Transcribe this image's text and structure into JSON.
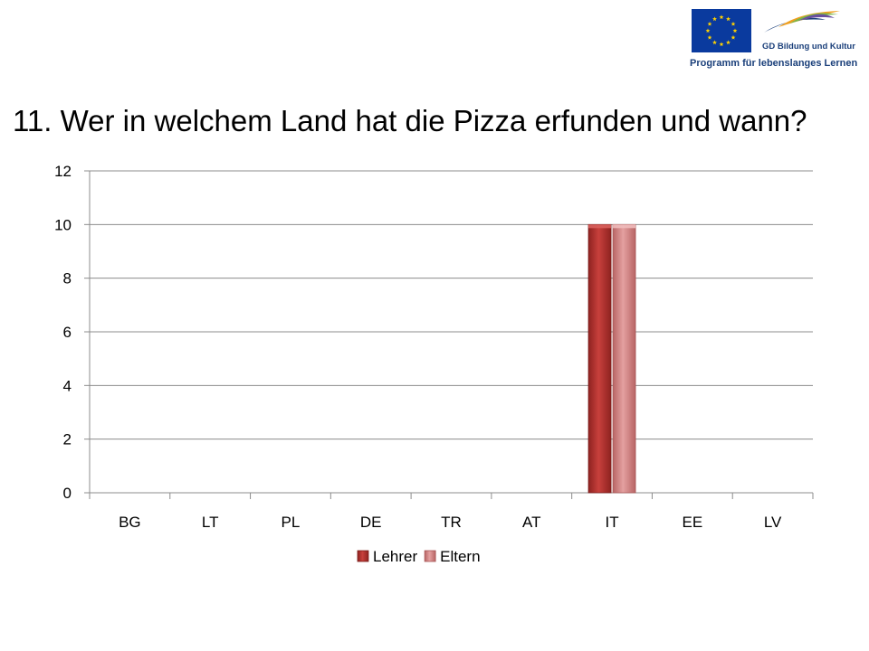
{
  "slide": {
    "title": "11. Wer in welchem Land hat die Pizza erfunden und wann?",
    "logo": {
      "gd_text": "GD Bildung und Kultur",
      "program_text": "Programm für lebenslanges Lernen",
      "eu_flag_color": "#0a3a9e",
      "star_color": "#ffd200"
    }
  },
  "chart_data": {
    "type": "bar",
    "categories": [
      "BG",
      "LT",
      "PL",
      "DE",
      "TR",
      "AT",
      "IT",
      "EE",
      "LV"
    ],
    "series": [
      {
        "name": "Lehrer",
        "values": [
          0,
          0,
          0,
          0,
          0,
          0,
          10,
          0,
          0
        ],
        "color": "#b5312f"
      },
      {
        "name": "Eltern",
        "values": [
          0,
          0,
          0,
          0,
          0,
          0,
          10,
          0,
          0
        ],
        "color": "#d98585"
      }
    ],
    "ylim": [
      0,
      12
    ],
    "yticks": [
      0,
      2,
      4,
      6,
      8,
      10,
      12
    ],
    "grid": true,
    "legend": "bottom",
    "xlabel": "",
    "ylabel": ""
  }
}
